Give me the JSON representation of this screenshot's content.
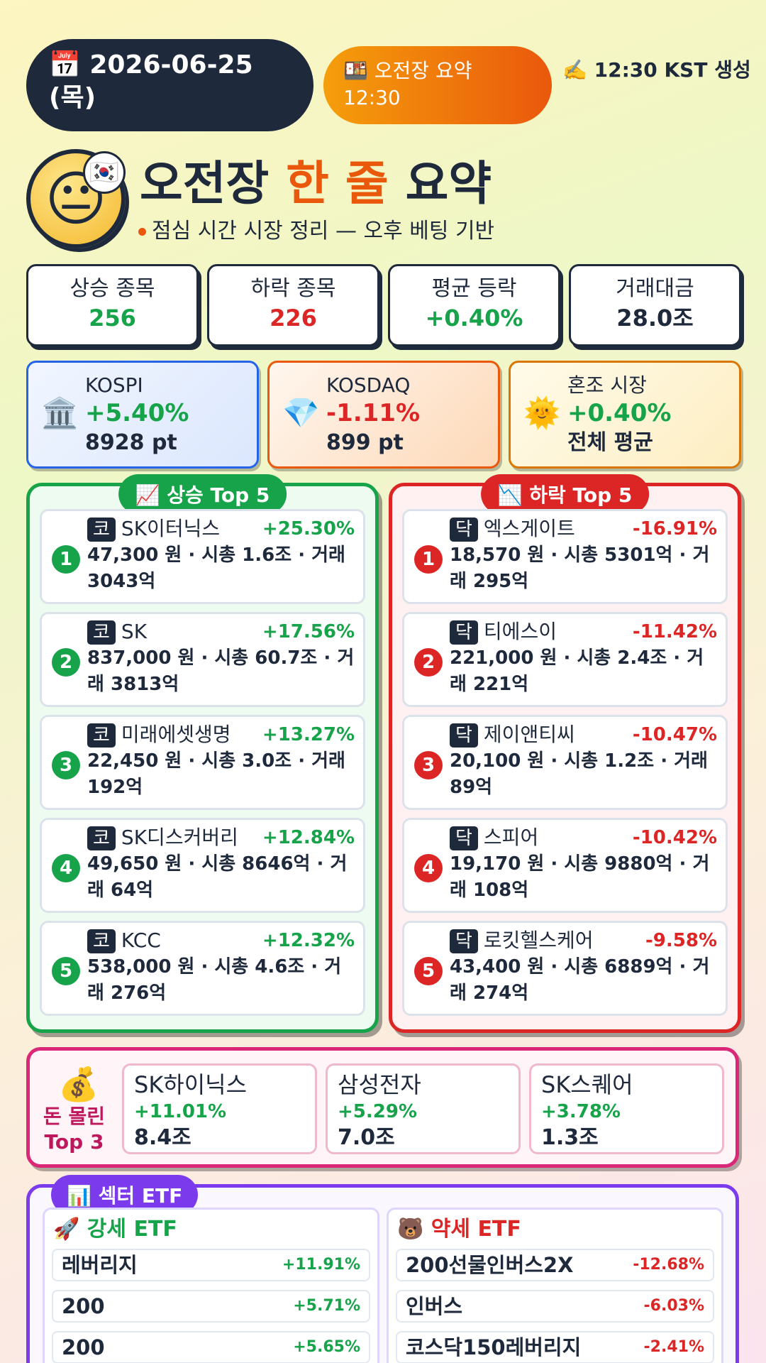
{
  "header": {
    "date": "📅 2026-06-25 (목)",
    "badge": "🍱 오전장 요약 12:30",
    "generated": "✍️ 12:30 KST 생성"
  },
  "hero": {
    "avatar": "😐",
    "flag": "🇰🇷",
    "title_parts": [
      "오전장",
      "한 줄",
      "요약"
    ],
    "subtitle": "점심 시간 시장 정리 — 오후 베팅 기반"
  },
  "stats": [
    {
      "label": "상승 종목",
      "value": "256",
      "color": "#16a34a"
    },
    {
      "label": "하락 종목",
      "value": "226",
      "color": "#dc2626"
    },
    {
      "label": "평균 등락",
      "value": "+0.40%",
      "color": "#16a34a"
    },
    {
      "label": "거래대금",
      "value": "28.0조",
      "color": "#1e293b"
    }
  ],
  "indices": [
    {
      "icon": "🏛️",
      "name": "KOSPI",
      "change": "+5.40%",
      "level": "8928 pt",
      "color": "#16a34a"
    },
    {
      "icon": "💎",
      "name": "KOSDAQ",
      "change": "-1.11%",
      "level": "899 pt",
      "color": "#dc2626"
    },
    {
      "icon": "🌞",
      "name": "혼조 시장",
      "change": "+0.40%",
      "level": "전체 평균",
      "color": "#16a34a"
    }
  ],
  "gainers": {
    "title": "📈 상승 Top 5",
    "items": [
      {
        "rank": "1",
        "market": "코",
        "name": "SK이터닉스",
        "change": "+25.30%",
        "detail": "47,300 원 · 시총 1.6조 · 거래 3043억"
      },
      {
        "rank": "2",
        "market": "코",
        "name": "SK",
        "change": "+17.56%",
        "detail": "837,000 원 · 시총 60.7조 · 거래 3813억"
      },
      {
        "rank": "3",
        "market": "코",
        "name": "미래에셋생명",
        "change": "+13.27%",
        "detail": "22,450 원 · 시총 3.0조 · 거래 192억"
      },
      {
        "rank": "4",
        "market": "코",
        "name": "SK디스커버리",
        "change": "+12.84%",
        "detail": "49,650 원 · 시총 8646억 · 거래 64억"
      },
      {
        "rank": "5",
        "market": "코",
        "name": "KCC",
        "change": "+12.32%",
        "detail": "538,000 원 · 시총 4.6조 · 거래 276억"
      }
    ]
  },
  "losers": {
    "title": "📉 하락 Top 5",
    "items": [
      {
        "rank": "1",
        "market": "닥",
        "name": "엑스게이트",
        "change": "-16.91%",
        "detail": "18,570 원 · 시총 5301억 · 거래 295억"
      },
      {
        "rank": "2",
        "market": "닥",
        "name": "티에스이",
        "change": "-11.42%",
        "detail": "221,000 원 · 시총 2.4조 · 거래 221억"
      },
      {
        "rank": "3",
        "market": "닥",
        "name": "제이앤티씨",
        "change": "-10.47%",
        "detail": "20,100 원 · 시총 1.2조 · 거래 89억"
      },
      {
        "rank": "4",
        "market": "닥",
        "name": "스피어",
        "change": "-10.42%",
        "detail": "19,170 원 · 시총 9880억 · 거래 108억"
      },
      {
        "rank": "5",
        "market": "닥",
        "name": "로킷헬스케어",
        "change": "-9.58%",
        "detail": "43,400 원 · 시총 6889억 · 거래 274억"
      }
    ]
  },
  "money": {
    "icon": "💰",
    "label": "돈 몰린 Top 3",
    "items": [
      {
        "name": "SK하이닉스",
        "change": "+11.01%",
        "amount": "8.4조"
      },
      {
        "name": "삼성전자",
        "change": "+5.29%",
        "amount": "7.0조"
      },
      {
        "name": "SK스퀘어",
        "change": "+3.78%",
        "amount": "1.3조"
      }
    ]
  },
  "etf": {
    "title": "📊 섹터 ETF",
    "strong": {
      "title": "🚀 강세 ETF",
      "items": [
        {
          "name": "레버리지",
          "change": "+11.91%"
        },
        {
          "name": "200",
          "change": "+5.71%"
        },
        {
          "name": "200",
          "change": "+5.65%"
        }
      ]
    },
    "weak": {
      "title": "🐻 약세 ETF",
      "items": [
        {
          "name": "200선물인버스2X",
          "change": "-12.68%"
        },
        {
          "name": "인버스",
          "change": "-6.03%"
        },
        {
          "name": "코스닥150레버리지",
          "change": "-2.41%"
        }
      ]
    }
  }
}
